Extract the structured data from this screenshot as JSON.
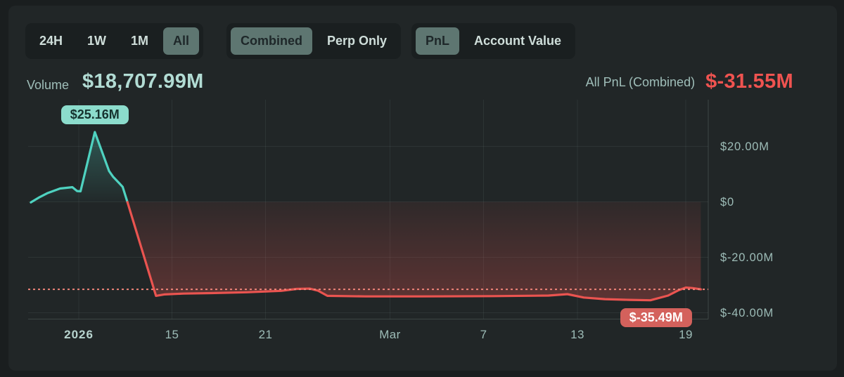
{
  "toolbar": {
    "time_ranges": [
      {
        "label": "24H",
        "selected": false
      },
      {
        "label": "1W",
        "selected": false
      },
      {
        "label": "1M",
        "selected": false
      },
      {
        "label": "All",
        "selected": true
      }
    ],
    "modes": [
      {
        "label": "Combined",
        "selected": true
      },
      {
        "label": "Perp Only",
        "selected": false
      }
    ],
    "metrics": [
      {
        "label": "PnL",
        "selected": true
      },
      {
        "label": "Account Value",
        "selected": false
      }
    ]
  },
  "header": {
    "volume_label": "Volume",
    "volume_value": "$18,707.99M",
    "pnl_label": "All PnL (Combined)",
    "pnl_value": "$-31.55M"
  },
  "colors": {
    "positive_line": "#4fd2c0",
    "negative_line": "#ea5450",
    "pnl_value_text": "#ef5350",
    "volume_value_text": "#b2dcd4",
    "selected_button_bg": "#5e7671",
    "peak_tooltip_bg": "#8cdccc",
    "trough_tooltip_bg": "#d4615c",
    "current_value_line": "#ef8579",
    "card_bg": "#212627",
    "axis_text": "#9dbcb7"
  },
  "chart_data": {
    "type": "line",
    "title": "All PnL (Combined) over time",
    "unit": "USD millions",
    "grid": true,
    "legend": null,
    "y_axis": {
      "range": [
        -42,
        37
      ],
      "ticks": [
        {
          "label": "$20.00M",
          "value": 20
        },
        {
          "label": "$0",
          "value": 0
        },
        {
          "label": "$-20.00M",
          "value": -20
        },
        {
          "label": "$-40.00M",
          "value": -40
        }
      ]
    },
    "x_axis": {
      "ticks": [
        {
          "label": "2026",
          "t": 0.0745,
          "bold": true
        },
        {
          "label": "15",
          "t": 0.2115,
          "bold": false
        },
        {
          "label": "21",
          "t": 0.349,
          "bold": false
        },
        {
          "label": "Mar",
          "t": 0.532,
          "bold": false
        },
        {
          "label": "7",
          "t": 0.6696,
          "bold": false
        },
        {
          "label": "13",
          "t": 0.8077,
          "bold": false
        },
        {
          "label": "19",
          "t": 0.9669,
          "bold": false
        }
      ]
    },
    "current_value": -31.55,
    "series": [
      {
        "name": "pnl-positive-segment",
        "color": "#4fd2c0",
        "points": [
          [
            0.004,
            -0.2
          ],
          [
            0.017,
            1.7
          ],
          [
            0.028,
            3.1
          ],
          [
            0.047,
            4.8
          ],
          [
            0.065,
            5.3
          ],
          [
            0.072,
            3.9
          ],
          [
            0.077,
            3.8
          ],
          [
            0.098,
            25.16
          ],
          [
            0.119,
            11.1
          ],
          [
            0.125,
            9.0
          ],
          [
            0.134,
            6.7
          ],
          [
            0.139,
            5.4
          ],
          [
            0.146,
            -0.1
          ]
        ]
      },
      {
        "name": "pnl-negative-segment",
        "color": "#ea5450",
        "points": [
          [
            0.146,
            -0.1
          ],
          [
            0.188,
            -33.9
          ],
          [
            0.2,
            -33.4
          ],
          [
            0.228,
            -33.1
          ],
          [
            0.269,
            -32.9
          ],
          [
            0.321,
            -32.6
          ],
          [
            0.372,
            -32.1
          ],
          [
            0.395,
            -31.4
          ],
          [
            0.414,
            -31.3
          ],
          [
            0.426,
            -32.0
          ],
          [
            0.44,
            -33.9
          ],
          [
            0.496,
            -34.1
          ],
          [
            0.579,
            -34.1
          ],
          [
            0.683,
            -34.0
          ],
          [
            0.765,
            -33.8
          ],
          [
            0.793,
            -33.3
          ],
          [
            0.817,
            -34.5
          ],
          [
            0.848,
            -35.1
          ],
          [
            0.884,
            -35.35
          ],
          [
            0.915,
            -35.49
          ],
          [
            0.941,
            -33.8
          ],
          [
            0.957,
            -31.8
          ],
          [
            0.967,
            -30.9
          ],
          [
            0.977,
            -31.1
          ],
          [
            0.989,
            -31.55
          ]
        ]
      }
    ],
    "annotations": {
      "peak": {
        "label": "$25.16M",
        "value": 25.16,
        "t": 0.098
      },
      "trough": {
        "label": "$-35.49M",
        "value": -35.49,
        "t": 0.915
      }
    }
  }
}
